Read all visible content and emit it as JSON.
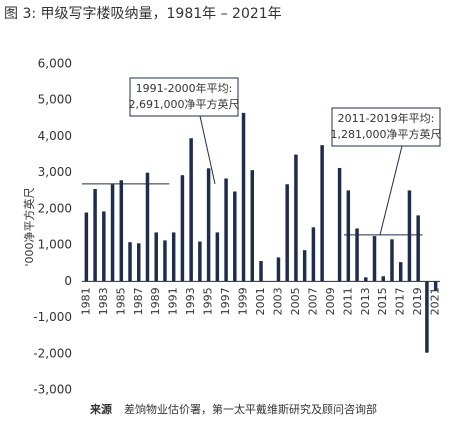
{
  "chart_data": {
    "type": "bar",
    "title": "图 3: 甲级写字楼吸纳量，1981年 – 2021年",
    "y_label": "'000净平方英尺",
    "source_label": "来源",
    "source": "差饷物业估价署，第一太平戴维斯研究及顾问咨询部",
    "categories": [
      "1981",
      null,
      "1983",
      null,
      "1985",
      null,
      "1987",
      null,
      "1989",
      null,
      "1991",
      null,
      "1993",
      null,
      "1995",
      null,
      "1997",
      null,
      "1999",
      null,
      "2001",
      null,
      "2003",
      null,
      "2005",
      null,
      "2007",
      null,
      "2009",
      null,
      "2011",
      null,
      "2013",
      null,
      "2015",
      null,
      "2017",
      null,
      "2019",
      null,
      "2021"
    ],
    "values": [
      1900,
      2550,
      1930,
      2680,
      2790,
      1080,
      1050,
      3000,
      1350,
      1130,
      1350,
      2930,
      3950,
      1100,
      3120,
      1350,
      2840,
      2480,
      4650,
      3070,
      560,
      0,
      660,
      2680,
      3500,
      860,
      1490,
      3760,
      0,
      3130,
      2510,
      1460,
      110,
      1250,
      140,
      1160,
      530,
      2510,
      1820,
      -1970,
      -250
    ],
    "color": "#1f2d4a",
    "ylim": [
      -3000,
      6000
    ],
    "yticks": [
      {
        "value": -3000,
        "label": "-3,000"
      },
      {
        "value": -2000,
        "label": "-2,000"
      },
      {
        "value": -1000,
        "label": "-1,000"
      },
      0,
      {
        "value": 1000,
        "label": "1,000"
      },
      {
        "value": 2000,
        "label": "2,000"
      },
      {
        "value": 3000,
        "label": "3,000"
      },
      {
        "value": 4000,
        "label": "4,000"
      },
      {
        "value": 5000,
        "label": "5,000"
      },
      {
        "value": 6000,
        "label": "6,000"
      }
    ],
    "grid": false,
    "annotations": [
      {
        "title": "1991-2000年平均:",
        "text": "2,691,000净平方英尺",
        "value": 2691,
        "x_range": [
          "1991",
          "2000"
        ]
      },
      {
        "title": "2011-2019年平均:",
        "text": "1,281,000净平方英尺",
        "value": 1281,
        "x_range": [
          "2011",
          "2019"
        ]
      }
    ]
  }
}
